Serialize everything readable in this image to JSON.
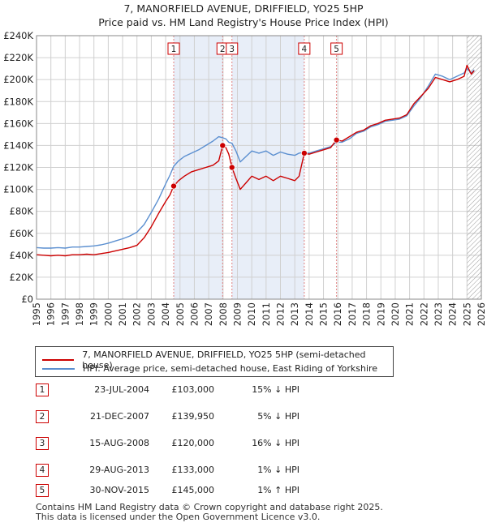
{
  "chart_data": {
    "type": "line",
    "title": "7, MANORFIELD AVENUE, DRIFFIELD, YO25 5HP",
    "subtitle": "Price paid vs. HM Land Registry's House Price Index (HPI)",
    "xlabel": "",
    "ylabel": "",
    "xlim": [
      1995,
      2026
    ],
    "ylim": [
      0,
      240000
    ],
    "yticks": [
      0,
      20000,
      40000,
      60000,
      80000,
      100000,
      120000,
      140000,
      160000,
      180000,
      200000,
      220000,
      240000
    ],
    "ytick_labels": [
      "£0",
      "£20K",
      "£40K",
      "£60K",
      "£80K",
      "£100K",
      "£120K",
      "£140K",
      "£160K",
      "£180K",
      "£200K",
      "£220K",
      "£240K"
    ],
    "xticks": [
      1995,
      1996,
      1997,
      1998,
      1999,
      2000,
      2001,
      2002,
      2003,
      2004,
      2005,
      2006,
      2007,
      2008,
      2009,
      2010,
      2011,
      2012,
      2013,
      2014,
      2015,
      2016,
      2017,
      2018,
      2019,
      2020,
      2021,
      2022,
      2023,
      2024,
      2025,
      2026
    ],
    "xtick_labels": [
      "1995",
      "1996",
      "1997",
      "1998",
      "1999",
      "2000",
      "2001",
      "2002",
      "2003",
      "2004",
      "2005",
      "2006",
      "2007",
      "2008",
      "2009",
      "2010",
      "2011",
      "2012",
      "2013",
      "2014",
      "2015",
      "2016",
      "2017",
      "2018",
      "2019",
      "2020",
      "2021",
      "2022",
      "2023",
      "2024",
      "2025",
      "2026"
    ],
    "grid": true,
    "hatch_from_year": 2025.0,
    "series": [
      {
        "name": "7, MANORFIELD AVENUE, DRIFFIELD, YO25 5HP (semi-detached house)",
        "color": "#cc0000",
        "points": [
          [
            1995.0,
            40500
          ],
          [
            1995.5,
            40000
          ],
          [
            1996.0,
            39500
          ],
          [
            1996.5,
            40000
          ],
          [
            1997.0,
            39500
          ],
          [
            1997.5,
            40500
          ],
          [
            1998.0,
            40500
          ],
          [
            1998.5,
            41000
          ],
          [
            1999.0,
            40500
          ],
          [
            1999.5,
            41500
          ],
          [
            2000.0,
            42500
          ],
          [
            2000.5,
            44000
          ],
          [
            2001.0,
            45500
          ],
          [
            2001.5,
            47000
          ],
          [
            2002.0,
            49000
          ],
          [
            2002.5,
            56000
          ],
          [
            2003.0,
            66000
          ],
          [
            2003.5,
            78000
          ],
          [
            2004.0,
            89000
          ],
          [
            2004.3,
            95000
          ],
          [
            2004.56,
            103000
          ],
          [
            2004.9,
            108000
          ],
          [
            2005.3,
            112000
          ],
          [
            2005.8,
            116000
          ],
          [
            2006.3,
            118000
          ],
          [
            2006.8,
            120000
          ],
          [
            2007.3,
            122000
          ],
          [
            2007.7,
            126000
          ],
          [
            2007.97,
            139950
          ],
          [
            2008.2,
            138000
          ],
          [
            2008.4,
            132000
          ],
          [
            2008.62,
            120000
          ],
          [
            2008.9,
            110000
          ],
          [
            2009.2,
            100000
          ],
          [
            2009.6,
            106000
          ],
          [
            2010.0,
            112000
          ],
          [
            2010.5,
            109000
          ],
          [
            2011.0,
            112000
          ],
          [
            2011.5,
            108000
          ],
          [
            2012.0,
            112000
          ],
          [
            2012.5,
            110000
          ],
          [
            2013.0,
            108000
          ],
          [
            2013.3,
            112000
          ],
          [
            2013.66,
            133000
          ],
          [
            2014.0,
            132000
          ],
          [
            2014.5,
            134000
          ],
          [
            2015.0,
            136000
          ],
          [
            2015.5,
            138000
          ],
          [
            2015.91,
            145000
          ],
          [
            2016.3,
            144000
          ],
          [
            2016.8,
            148000
          ],
          [
            2017.3,
            152000
          ],
          [
            2017.8,
            154000
          ],
          [
            2018.3,
            158000
          ],
          [
            2018.8,
            160000
          ],
          [
            2019.3,
            163000
          ],
          [
            2019.8,
            164000
          ],
          [
            2020.3,
            165000
          ],
          [
            2020.8,
            168000
          ],
          [
            2021.3,
            178000
          ],
          [
            2021.8,
            185000
          ],
          [
            2022.3,
            192000
          ],
          [
            2022.8,
            202000
          ],
          [
            2023.3,
            200000
          ],
          [
            2023.8,
            198000
          ],
          [
            2024.3,
            200000
          ],
          [
            2024.8,
            203000
          ],
          [
            2025.0,
            213000
          ],
          [
            2025.3,
            205000
          ],
          [
            2025.5,
            208000
          ]
        ]
      },
      {
        "name": "HPI: Average price, semi-detached house, East Riding of Yorkshire",
        "color": "#5b8fd0",
        "points": [
          [
            1995.0,
            47000
          ],
          [
            1995.5,
            46500
          ],
          [
            1996.0,
            46500
          ],
          [
            1996.5,
            47000
          ],
          [
            1997.0,
            46500
          ],
          [
            1997.5,
            47500
          ],
          [
            1998.0,
            47500
          ],
          [
            1998.5,
            48000
          ],
          [
            1999.0,
            48500
          ],
          [
            1999.5,
            49500
          ],
          [
            2000.0,
            51000
          ],
          [
            2000.5,
            53000
          ],
          [
            2001.0,
            55000
          ],
          [
            2001.5,
            57500
          ],
          [
            2002.0,
            61000
          ],
          [
            2002.5,
            68000
          ],
          [
            2003.0,
            79000
          ],
          [
            2003.5,
            91000
          ],
          [
            2004.0,
            105000
          ],
          [
            2004.3,
            113000
          ],
          [
            2004.56,
            121000
          ],
          [
            2004.9,
            126000
          ],
          [
            2005.3,
            130000
          ],
          [
            2005.8,
            133000
          ],
          [
            2006.3,
            136000
          ],
          [
            2006.8,
            140000
          ],
          [
            2007.3,
            144000
          ],
          [
            2007.7,
            148000
          ],
          [
            2007.97,
            147000
          ],
          [
            2008.2,
            146000
          ],
          [
            2008.4,
            143000
          ],
          [
            2008.62,
            142000
          ],
          [
            2008.9,
            135000
          ],
          [
            2009.2,
            125000
          ],
          [
            2009.6,
            130000
          ],
          [
            2010.0,
            135000
          ],
          [
            2010.5,
            133000
          ],
          [
            2011.0,
            135000
          ],
          [
            2011.5,
            131000
          ],
          [
            2012.0,
            134000
          ],
          [
            2012.5,
            132000
          ],
          [
            2013.0,
            131000
          ],
          [
            2013.3,
            133000
          ],
          [
            2013.66,
            134000
          ],
          [
            2014.0,
            133000
          ],
          [
            2014.5,
            135000
          ],
          [
            2015.0,
            137000
          ],
          [
            2015.5,
            139000
          ],
          [
            2015.91,
            143000
          ],
          [
            2016.3,
            143000
          ],
          [
            2016.8,
            146000
          ],
          [
            2017.3,
            151000
          ],
          [
            2017.8,
            153000
          ],
          [
            2018.3,
            157000
          ],
          [
            2018.8,
            159000
          ],
          [
            2019.3,
            162000
          ],
          [
            2019.8,
            163000
          ],
          [
            2020.3,
            164000
          ],
          [
            2020.8,
            167000
          ],
          [
            2021.3,
            176000
          ],
          [
            2021.8,
            184000
          ],
          [
            2022.3,
            194000
          ],
          [
            2022.8,
            205000
          ],
          [
            2023.3,
            203000
          ],
          [
            2023.8,
            200000
          ],
          [
            2024.3,
            203000
          ],
          [
            2024.8,
            206000
          ],
          [
            2025.0,
            210000
          ],
          [
            2025.3,
            206000
          ],
          [
            2025.5,
            209000
          ]
        ]
      }
    ],
    "sales": [
      {
        "label": "1",
        "year": 2004.56,
        "price": 103000
      },
      {
        "label": "2",
        "year": 2007.97,
        "price": 139950
      },
      {
        "label": "3",
        "year": 2008.62,
        "price": 120000
      },
      {
        "label": "4",
        "year": 2013.66,
        "price": 133000
      },
      {
        "label": "5",
        "year": 2015.91,
        "price": 145000
      }
    ],
    "shaded_ranges": [
      [
        2004.56,
        2007.97
      ],
      [
        2008.62,
        2013.66
      ]
    ]
  },
  "legend": {
    "property_label": "7, MANORFIELD AVENUE, DRIFFIELD, YO25 5HP (semi-detached house)",
    "hpi_label": "HPI: Average price, semi-detached house, East Riding of Yorkshire"
  },
  "sales_table": [
    {
      "num": "1",
      "date": "23-JUL-2004",
      "price": "£103,000",
      "hpi": "15% ↓ HPI"
    },
    {
      "num": "2",
      "date": "21-DEC-2007",
      "price": "£139,950",
      "hpi": "5% ↓ HPI"
    },
    {
      "num": "3",
      "date": "15-AUG-2008",
      "price": "£120,000",
      "hpi": "16% ↓ HPI"
    },
    {
      "num": "4",
      "date": "29-AUG-2013",
      "price": "£133,000",
      "hpi": "1% ↓ HPI"
    },
    {
      "num": "5",
      "date": "30-NOV-2015",
      "price": "£145,000",
      "hpi": "1% ↑ HPI"
    }
  ],
  "footer": {
    "line1": "Contains HM Land Registry data © Crown copyright and database right 2025.",
    "line2": "This data is licensed under the Open Government Licence v3.0."
  }
}
